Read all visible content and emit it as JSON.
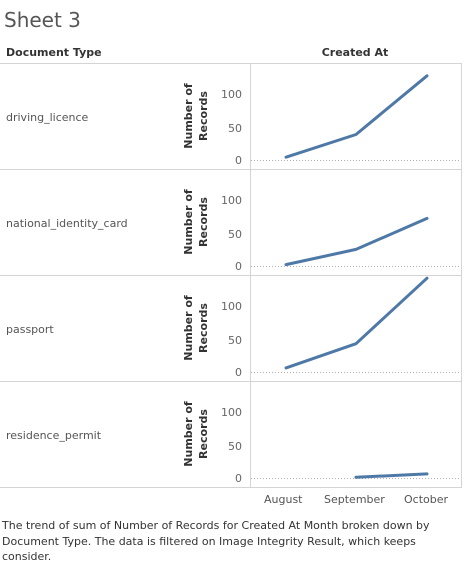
{
  "title": "Sheet 3",
  "headers": {
    "row_dimension": "Document Type",
    "column_dimension": "Created At"
  },
  "caption": "The trend of sum of Number of Records for Created At Month broken down by Document Type. The data is filtered on Image Integrity Result, which keeps consider.",
  "colors": {
    "line": "#4e79a7",
    "grid": "#d4d4d4",
    "zero_line": "#b0b0b0"
  },
  "chart_data": {
    "type": "line",
    "x": [
      "August",
      "September",
      "October"
    ],
    "ylabel": "Number of Records",
    "yticks": [
      0,
      50,
      100
    ],
    "ylim": [
      0,
      130
    ],
    "grid": false,
    "panels": [
      {
        "name": "driving_licence",
        "values": [
          4,
          37,
          122
        ]
      },
      {
        "name": "national_identity_card",
        "values": [
          2,
          24,
          69
        ]
      },
      {
        "name": "passport",
        "values": [
          6,
          41,
          136
        ]
      },
      {
        "name": "residence_permit",
        "values": [
          null,
          1,
          6
        ]
      }
    ]
  }
}
